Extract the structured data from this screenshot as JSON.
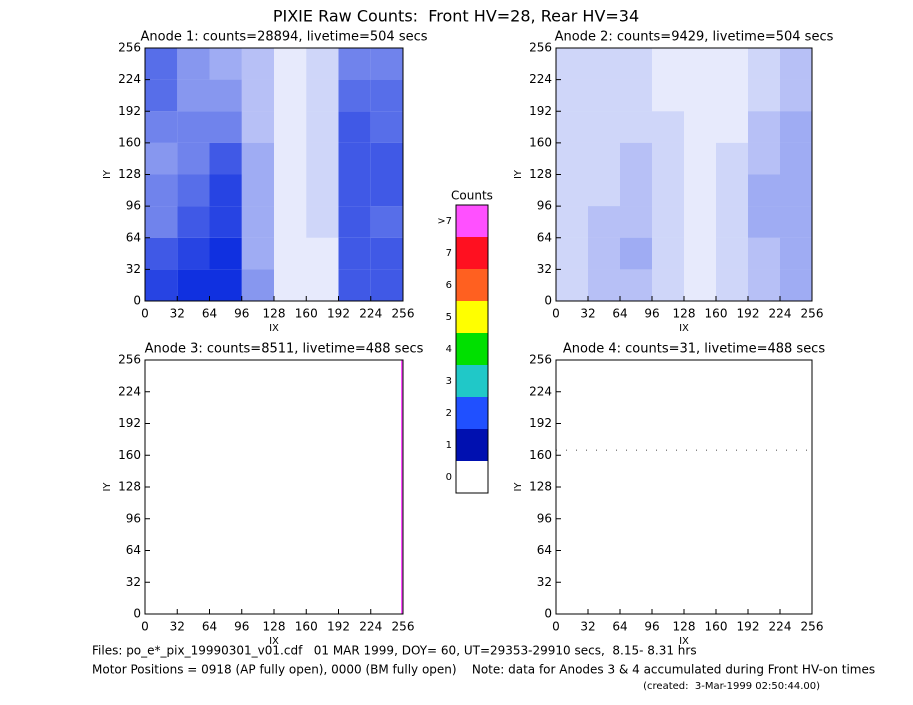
{
  "page": {
    "title": "PIXIE Raw Counts:  Front HV=28, Rear HV=34",
    "footer": [
      "Files: po_e*_pix_19990301_v01.cdf   01 MAR 1999, DOY= 60, UT=29353-29910 secs,  8.15- 8.31 hrs",
      "Motor Positions = 0918 (AP fully open), 0000 (BM fully open)    Note: data for Anodes 3 & 4 accumulated during Front HV-on times",
      "(created:  3-Mar-1999 02:50:44.00)"
    ]
  },
  "colorbar": {
    "title": "Counts",
    "labels": [
      "0",
      "1",
      "2",
      "3",
      "4",
      "5",
      "6",
      "7",
      ">7"
    ],
    "colors": [
      "#ffffff",
      "#0010b0",
      "#2050ff",
      "#20c8c8",
      "#00e000",
      "#ffff00",
      "#ff6020",
      "#ff1020",
      "#ff50ff"
    ]
  },
  "chart_data": [
    {
      "type": "heatmap",
      "title": "Anode 1: counts=28894, livetime=504 secs",
      "x_label": "IX",
      "y_label": "IY",
      "xlim": [
        0,
        256
      ],
      "ylim": [
        0,
        256
      ],
      "xticks": [
        0,
        32,
        64,
        96,
        128,
        160,
        192,
        224,
        256
      ],
      "yticks": [
        0,
        32,
        64,
        96,
        128,
        160,
        192,
        224,
        256
      ],
      "color": "#1030e0",
      "z": [
        [
          0.9,
          1.0,
          1.0,
          0.5,
          0.1,
          0.1,
          0.8,
          0.8
        ],
        [
          0.8,
          0.9,
          1.0,
          0.4,
          0.1,
          0.1,
          0.8,
          0.8
        ],
        [
          0.6,
          0.8,
          0.9,
          0.4,
          0.1,
          0.2,
          0.8,
          0.7
        ],
        [
          0.6,
          0.7,
          0.9,
          0.4,
          0.1,
          0.2,
          0.8,
          0.8
        ],
        [
          0.5,
          0.6,
          0.8,
          0.4,
          0.1,
          0.2,
          0.8,
          0.8
        ],
        [
          0.6,
          0.6,
          0.6,
          0.3,
          0.1,
          0.2,
          0.8,
          0.7
        ],
        [
          0.7,
          0.5,
          0.5,
          0.3,
          0.1,
          0.2,
          0.7,
          0.7
        ],
        [
          0.7,
          0.5,
          0.4,
          0.3,
          0.1,
          0.2,
          0.6,
          0.6
        ]
      ]
    },
    {
      "type": "heatmap",
      "title": "Anode 2: counts=9429, livetime=504 secs",
      "x_label": "IX",
      "y_label": "IY",
      "xlim": [
        0,
        256
      ],
      "ylim": [
        0,
        256
      ],
      "xticks": [
        0,
        32,
        64,
        96,
        128,
        160,
        192,
        224,
        256
      ],
      "yticks": [
        0,
        32,
        64,
        96,
        128,
        160,
        192,
        224,
        256
      ],
      "color": "#1030e0",
      "z": [
        [
          0.2,
          0.3,
          0.3,
          0.2,
          0.1,
          0.2,
          0.3,
          0.4
        ],
        [
          0.2,
          0.3,
          0.4,
          0.2,
          0.1,
          0.2,
          0.3,
          0.4
        ],
        [
          0.2,
          0.3,
          0.3,
          0.2,
          0.1,
          0.2,
          0.4,
          0.4
        ],
        [
          0.2,
          0.2,
          0.3,
          0.2,
          0.1,
          0.2,
          0.4,
          0.4
        ],
        [
          0.2,
          0.2,
          0.3,
          0.2,
          0.1,
          0.2,
          0.3,
          0.4
        ],
        [
          0.2,
          0.2,
          0.2,
          0.2,
          0.1,
          0.1,
          0.3,
          0.4
        ],
        [
          0.2,
          0.2,
          0.2,
          0.1,
          0.1,
          0.1,
          0.2,
          0.3
        ],
        [
          0.2,
          0.2,
          0.2,
          0.1,
          0.1,
          0.1,
          0.2,
          0.3
        ]
      ]
    },
    {
      "type": "heatmap",
      "title": "Anode 3: counts=8511, livetime=488 secs",
      "x_label": "IX",
      "y_label": "IY",
      "xlim": [
        0,
        256
      ],
      "ylim": [
        0,
        256
      ],
      "xticks": [
        0,
        32,
        64,
        96,
        128,
        160,
        192,
        224,
        256
      ],
      "yticks": [
        0,
        32,
        64,
        96,
        128,
        160,
        192,
        224,
        256
      ],
      "color": "#1030e0",
      "z": [
        [
          0,
          0,
          0,
          0,
          0,
          0,
          0,
          0
        ],
        [
          0,
          0,
          0,
          0,
          0,
          0,
          0,
          0
        ],
        [
          0,
          0,
          0,
          0,
          0,
          0,
          0,
          0
        ],
        [
          0,
          0,
          0,
          0,
          0,
          0,
          0,
          0
        ],
        [
          0,
          0,
          0,
          0,
          0,
          0,
          0,
          0
        ],
        [
          0,
          0,
          0,
          0,
          0,
          0,
          0,
          0
        ],
        [
          0,
          0,
          0,
          0,
          0,
          0,
          0,
          0
        ],
        [
          0,
          0,
          0,
          0,
          0,
          0,
          0,
          0
        ]
      ],
      "line": {
        "x": 255,
        "y": [
          0,
          256
        ],
        "color": "#ff50ff"
      }
    },
    {
      "type": "heatmap",
      "title": "Anode 4: counts=31, livetime=488 secs",
      "x_label": "IX",
      "y_label": "IY",
      "xlim": [
        0,
        256
      ],
      "ylim": [
        0,
        256
      ],
      "xticks": [
        0,
        32,
        64,
        96,
        128,
        160,
        192,
        224,
        256
      ],
      "yticks": [
        0,
        32,
        64,
        96,
        128,
        160,
        192,
        224,
        256
      ],
      "color": "#1030e0",
      "z": [
        [
          0,
          0,
          0,
          0,
          0,
          0,
          0,
          0
        ],
        [
          0,
          0,
          0,
          0,
          0,
          0,
          0,
          0
        ],
        [
          0,
          0,
          0,
          0,
          0,
          0,
          0,
          0
        ],
        [
          0,
          0,
          0,
          0,
          0,
          0,
          0,
          0
        ],
        [
          0,
          0,
          0,
          0,
          0,
          0,
          0,
          0
        ],
        [
          0,
          0,
          0,
          0,
          0,
          0,
          0,
          0
        ],
        [
          0,
          0,
          0,
          0,
          0,
          0,
          0,
          0
        ],
        [
          0,
          0,
          0,
          0,
          0,
          0,
          0,
          0
        ]
      ],
      "line": {
        "y": 165,
        "x": [
          0,
          256
        ],
        "color": "#888888"
      }
    }
  ]
}
